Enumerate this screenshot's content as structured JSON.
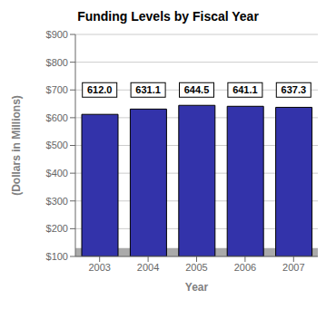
{
  "chart_data": {
    "type": "bar",
    "title": "Funding Levels by Fiscal Year",
    "x_label": "Year",
    "y_label": "(Dollars in Millions)",
    "categories": [
      "2003",
      "2004",
      "2005",
      "2006",
      "2007"
    ],
    "values": [
      612.0,
      631.1,
      644.5,
      641.1,
      637.3
    ],
    "value_labels": [
      "612.0",
      "631.1",
      "644.5",
      "641.1",
      "637.3"
    ],
    "data_labels": true,
    "label_y": 700,
    "floor": [
      100,
      130
    ],
    "color": "#3333aa",
    "ylim": [
      100,
      900
    ],
    "yticks": [
      {
        "value": 100,
        "label": "$100"
      },
      {
        "value": 200,
        "label": "$200"
      },
      {
        "value": 300,
        "label": "$300"
      },
      {
        "value": 400,
        "label": "$400"
      },
      {
        "value": 500,
        "label": "$500"
      },
      {
        "value": 600,
        "label": "$600"
      },
      {
        "value": 700,
        "label": "$700"
      },
      {
        "value": 800,
        "label": "$800"
      },
      {
        "value": 900,
        "label": "$900"
      }
    ],
    "grid": true
  }
}
